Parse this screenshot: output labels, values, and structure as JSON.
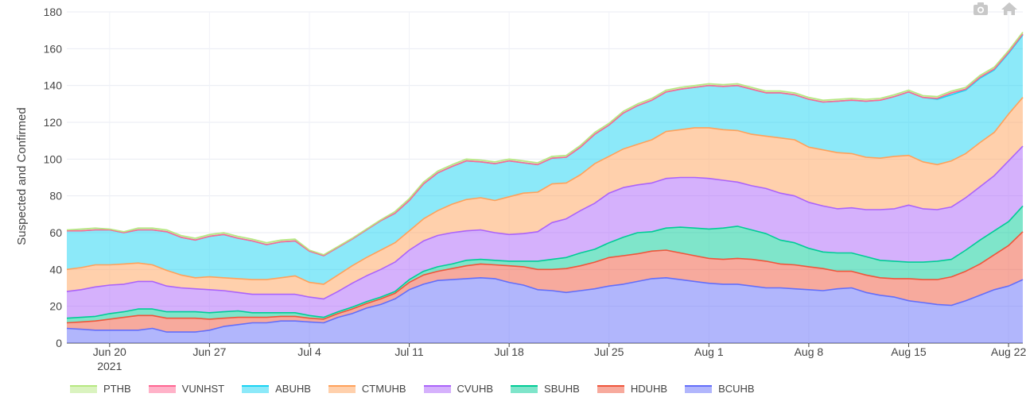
{
  "modebar": {
    "camera_icon": "camera-icon",
    "home_icon": "home-icon"
  },
  "chart_data": {
    "type": "area",
    "stacked": true,
    "x": [
      "2021-06-17",
      "2021-06-18",
      "2021-06-19",
      "2021-06-20",
      "2021-06-21",
      "2021-06-22",
      "2021-06-23",
      "2021-06-24",
      "2021-06-25",
      "2021-06-26",
      "2021-06-27",
      "2021-06-28",
      "2021-06-29",
      "2021-06-30",
      "2021-07-01",
      "2021-07-02",
      "2021-07-03",
      "2021-07-04",
      "2021-07-05",
      "2021-07-06",
      "2021-07-07",
      "2021-07-08",
      "2021-07-09",
      "2021-07-10",
      "2021-07-11",
      "2021-07-12",
      "2021-07-13",
      "2021-07-14",
      "2021-07-15",
      "2021-07-16",
      "2021-07-17",
      "2021-07-18",
      "2021-07-19",
      "2021-07-20",
      "2021-07-21",
      "2021-07-22",
      "2021-07-23",
      "2021-07-24",
      "2021-07-25",
      "2021-07-26",
      "2021-07-27",
      "2021-07-28",
      "2021-07-29",
      "2021-07-30",
      "2021-07-31",
      "2021-08-01",
      "2021-08-02",
      "2021-08-03",
      "2021-08-04",
      "2021-08-05",
      "2021-08-06",
      "2021-08-07",
      "2021-08-08",
      "2021-08-09",
      "2021-08-10",
      "2021-08-11",
      "2021-08-12",
      "2021-08-13",
      "2021-08-14",
      "2021-08-15",
      "2021-08-16",
      "2021-08-17",
      "2021-08-18",
      "2021-08-19",
      "2021-08-20",
      "2021-08-21",
      "2021-08-22",
      "2021-08-23"
    ],
    "xticks": [
      {
        "date": "2021-06-20",
        "label": "Jun 20",
        "sub": "2021"
      },
      {
        "date": "2021-06-27",
        "label": "Jun 27",
        "sub": ""
      },
      {
        "date": "2021-07-04",
        "label": "Jul 4",
        "sub": ""
      },
      {
        "date": "2021-07-11",
        "label": "Jul 11",
        "sub": ""
      },
      {
        "date": "2021-07-18",
        "label": "Jul 18",
        "sub": ""
      },
      {
        "date": "2021-07-25",
        "label": "Jul 25",
        "sub": ""
      },
      {
        "date": "2021-08-01",
        "label": "Aug 1",
        "sub": ""
      },
      {
        "date": "2021-08-08",
        "label": "Aug 8",
        "sub": ""
      },
      {
        "date": "2021-08-15",
        "label": "Aug 15",
        "sub": ""
      },
      {
        "date": "2021-08-22",
        "label": "Aug 22",
        "sub": ""
      }
    ],
    "ylabel": "Suspected and Confirmed",
    "ylim": [
      0,
      180
    ],
    "yticks": [
      0,
      20,
      40,
      60,
      80,
      100,
      120,
      140,
      160,
      180
    ],
    "grid": true,
    "legend_position": "bottom-left",
    "series": [
      {
        "name": "BCUHB",
        "color": "#636efa",
        "values": [
          8,
          7.5,
          7,
          7,
          7,
          7,
          8,
          6,
          6,
          6,
          7,
          9,
          10,
          11,
          11,
          12,
          12,
          11.5,
          11,
          14,
          16,
          19,
          21,
          24,
          29,
          32,
          34,
          34.5,
          35,
          35.5,
          35,
          33,
          31.5,
          29,
          28.5,
          27.5,
          28.5,
          29.5,
          31,
          32,
          33.5,
          35,
          35.5,
          34.5,
          33.5,
          32.5,
          32,
          32,
          31,
          30,
          30,
          29.5,
          29,
          28.5,
          29.5,
          30,
          27.5,
          26,
          25,
          23,
          22,
          21,
          20.5,
          23,
          26,
          29,
          31,
          34.5
        ]
      },
      {
        "name": "HDUHB",
        "color": "#ef553b",
        "values": [
          3,
          4,
          5,
          6,
          7,
          8,
          7,
          7.5,
          7.5,
          7.5,
          6,
          4.5,
          4,
          3,
          3,
          2.5,
          2.5,
          2,
          2,
          2,
          2.5,
          2.5,
          3,
          3,
          4,
          5,
          5,
          6,
          7,
          7.5,
          7.5,
          9,
          10,
          11,
          11.5,
          13,
          13.5,
          14.5,
          15.5,
          15.5,
          15,
          15,
          15,
          14.5,
          14,
          13.5,
          13.5,
          14,
          14.5,
          14.5,
          13,
          13,
          12.5,
          12,
          9.5,
          9,
          9.5,
          9.5,
          10,
          12,
          12.5,
          13.5,
          15.5,
          16,
          17,
          19,
          22,
          26
        ]
      },
      {
        "name": "SBUHB",
        "color": "#00cc96",
        "values": [
          2.5,
          2.5,
          2.5,
          3,
          3,
          3.5,
          3.5,
          3.5,
          3.5,
          3.5,
          3.5,
          3.5,
          3.5,
          2.5,
          2.5,
          2,
          2,
          1.5,
          1,
          1,
          1,
          1,
          1,
          1,
          1.5,
          2,
          2.5,
          2.5,
          3,
          2.5,
          2.5,
          2.5,
          3,
          4.5,
          5.5,
          6,
          7,
          7,
          8,
          10,
          11.5,
          10.5,
          12,
          14,
          15,
          16,
          17,
          17.5,
          16,
          15,
          13,
          12,
          10,
          9,
          10,
          10,
          10,
          9.5,
          9.5,
          9,
          9.5,
          10,
          9.5,
          11.5,
          13,
          13,
          13,
          14
        ]
      },
      {
        "name": "CVUHB",
        "color": "#ab63fa",
        "values": [
          14.5,
          15,
          16,
          15.5,
          15,
          15,
          15,
          14,
          13,
          12.5,
          12.5,
          11.5,
          10,
          10,
          10,
          10,
          10,
          10,
          10,
          11,
          13,
          14,
          15,
          16,
          16,
          16.5,
          17,
          17,
          16,
          16,
          15,
          14.5,
          15,
          16,
          20,
          21,
          23,
          25,
          27,
          27,
          26,
          26.5,
          27,
          27,
          27.5,
          27.5,
          26,
          24,
          24,
          24.5,
          25.5,
          25.5,
          25,
          25,
          24,
          24.5,
          25.5,
          27.5,
          28.5,
          31,
          29,
          28,
          28.5,
          28.5,
          29,
          30,
          33,
          32.5
        ]
      },
      {
        "name": "CTMUHB",
        "color": "#ffa15a",
        "values": [
          12,
          12,
          12,
          11,
          11,
          10,
          9,
          8.5,
          7,
          6,
          7,
          7,
          7.5,
          8,
          8,
          9,
          10,
          8,
          8,
          9,
          9.5,
          10,
          10.5,
          10.5,
          10.5,
          12,
          13.5,
          15.5,
          17,
          17.5,
          17.5,
          20.5,
          22,
          21.5,
          21,
          19.5,
          19.5,
          21.5,
          20,
          21,
          22,
          23.5,
          25.5,
          26,
          27,
          27.5,
          27.5,
          28,
          28,
          28.5,
          30,
          30.5,
          30,
          30.5,
          30.5,
          29.5,
          28.5,
          28,
          28.5,
          27,
          25.5,
          24.5,
          25,
          24,
          24,
          23.5,
          25.5,
          26.5
        ]
      },
      {
        "name": "ABUHB",
        "color": "#19d3f3",
        "values": [
          21,
          20,
          19,
          19,
          17,
          18,
          19,
          21,
          20.5,
          20.5,
          22,
          23.5,
          22,
          21,
          19,
          19.5,
          19,
          17,
          15.5,
          15,
          14.5,
          15,
          16,
          16,
          16.5,
          19,
          20.5,
          20.5,
          21,
          19.5,
          20,
          19.5,
          16.5,
          15,
          14,
          14,
          15,
          16,
          17,
          19.5,
          21,
          21.5,
          21.5,
          22,
          22,
          23,
          23.5,
          24.5,
          24.5,
          23.5,
          24.5,
          24.5,
          26,
          26,
          28,
          29,
          30.5,
          31.5,
          32.5,
          34.5,
          35,
          35.5,
          36,
          34.5,
          35,
          34,
          33,
          34
        ]
      },
      {
        "name": "VUNHST",
        "color": "#ff6692",
        "values": [
          0,
          0,
          0,
          0,
          0,
          0,
          0,
          0,
          0,
          0,
          0,
          0,
          0,
          0,
          0,
          0,
          0,
          0,
          0,
          0,
          0,
          0,
          0,
          0,
          0,
          0,
          0,
          0,
          0,
          0,
          0,
          0,
          0,
          0,
          0,
          0,
          0,
          0,
          0,
          0,
          0,
          0,
          0,
          0,
          0,
          0,
          0,
          0,
          0,
          0,
          0,
          0,
          0,
          0,
          0,
          0,
          0,
          0,
          0,
          0,
          0,
          0.5,
          1,
          0.5,
          0.5,
          0.5,
          0.5,
          0.5
        ]
      },
      {
        "name": "PTHB",
        "color": "#b6e880",
        "values": [
          0.5,
          1,
          1,
          0.5,
          0.5,
          1,
          1,
          1,
          1,
          1,
          1,
          1,
          1,
          1,
          1,
          1,
          1,
          0.5,
          0.5,
          0.5,
          0.5,
          0.5,
          0.5,
          1,
          1,
          1,
          1,
          1,
          1,
          1,
          1,
          1,
          1,
          1,
          1,
          1,
          1,
          1,
          1,
          1,
          1,
          1,
          1,
          1,
          1,
          1,
          1,
          1,
          1,
          1,
          1,
          1,
          1,
          1,
          1,
          1,
          1,
          1,
          1,
          1,
          1,
          1,
          1,
          1,
          1,
          1,
          1,
          1
        ]
      }
    ]
  }
}
